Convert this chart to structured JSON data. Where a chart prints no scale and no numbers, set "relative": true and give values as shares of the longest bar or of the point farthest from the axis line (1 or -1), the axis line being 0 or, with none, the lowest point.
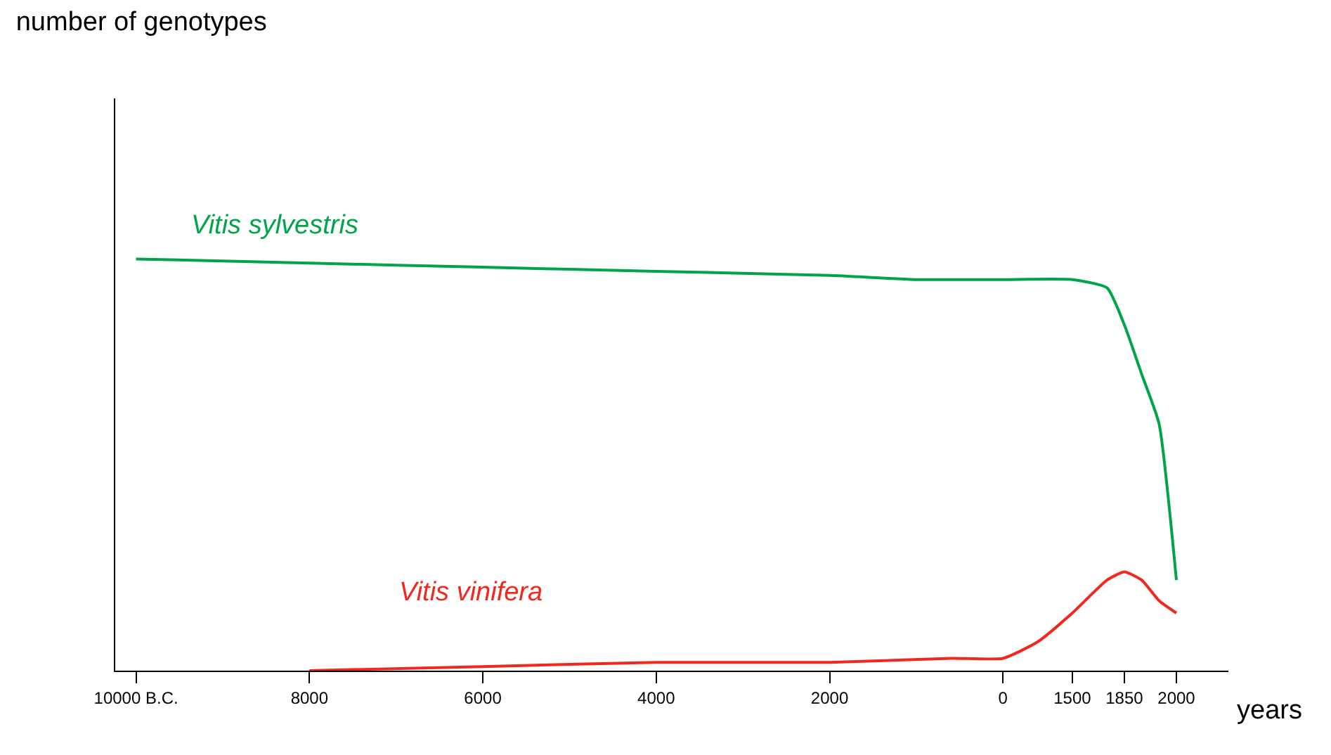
{
  "chart_data": {
    "type": "line",
    "relative": true,
    "title": "number of genotypes",
    "xlabel": "years",
    "categories": [
      "10000 B.C.",
      null,
      null,
      null,
      null,
      null,
      null,
      null,
      null,
      null,
      "8000",
      null,
      null,
      null,
      null,
      null,
      null,
      null,
      null,
      null,
      "6000",
      null,
      null,
      null,
      null,
      null,
      null,
      null,
      null,
      null,
      "4000",
      null,
      null,
      null,
      null,
      null,
      null,
      null,
      null,
      null,
      "2000",
      null,
      null,
      null,
      null,
      null,
      null,
      null,
      null,
      null,
      "0",
      null,
      null,
      null,
      "1500",
      null,
      null,
      "1850",
      null,
      null,
      "2000"
    ],
    "series": [
      {
        "name": "Vitis sylvestris",
        "color": "#00a44a",
        "values": [
          1.0,
          null,
          null,
          null,
          null,
          null,
          null,
          null,
          null,
          null,
          0.99,
          null,
          null,
          null,
          null,
          null,
          null,
          null,
          null,
          null,
          0.98,
          null,
          null,
          null,
          null,
          null,
          null,
          null,
          null,
          null,
          0.97,
          null,
          null,
          null,
          null,
          null,
          null,
          null,
          null,
          null,
          0.96,
          null,
          null,
          null,
          null,
          0.95,
          null,
          null,
          null,
          null,
          0.95,
          null,
          null,
          null,
          0.95,
          null,
          0.93,
          0.84,
          0.72,
          0.6,
          0.22
        ]
      },
      {
        "name": "Vitis vinifera",
        "color": "#f0281e",
        "values": [
          null,
          null,
          null,
          null,
          null,
          null,
          null,
          null,
          null,
          null,
          0.0,
          null,
          null,
          null,
          null,
          null,
          null,
          null,
          null,
          null,
          0.01,
          null,
          null,
          null,
          null,
          null,
          null,
          null,
          null,
          null,
          0.02,
          null,
          null,
          null,
          null,
          null,
          null,
          null,
          null,
          null,
          0.02,
          null,
          null,
          null,
          null,
          null,
          null,
          0.03,
          null,
          null,
          0.03,
          null,
          0.07,
          null,
          0.14,
          null,
          0.22,
          0.24,
          0.22,
          0.17,
          0.14
        ]
      }
    ],
    "legend": false,
    "marker": "none",
    "line_style": "solid"
  }
}
